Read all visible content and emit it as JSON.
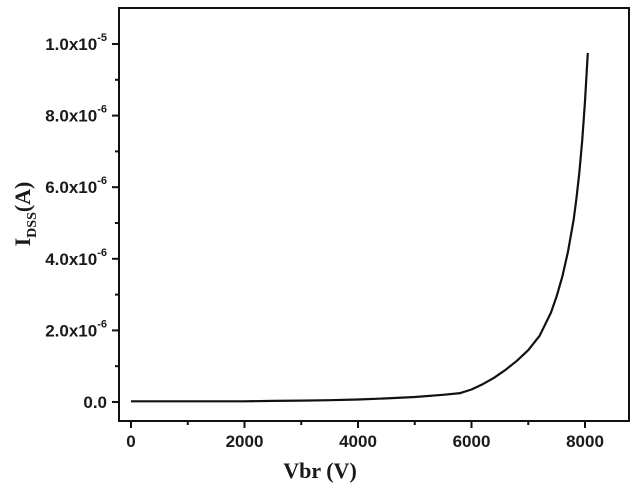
{
  "chart_data": {
    "type": "line",
    "title": "",
    "xlabel": "Vbr (V)",
    "ylabel": "I_DSS(A)",
    "ylabel_main": "I",
    "ylabel_sub": "DSS",
    "ylabel_unit": "(A)",
    "xlim": [
      -350,
      8700
    ],
    "ylim": [
      -5e-07,
      1.1e-05
    ],
    "grid": false,
    "legend": null,
    "x_ticks": [
      0,
      2000,
      4000,
      6000,
      8000
    ],
    "x_tick_labels": [
      "0",
      "2000",
      "4000",
      "6000",
      "8000"
    ],
    "x_minor_ticks": [
      1000,
      3000,
      5000,
      7000
    ],
    "y_ticks": [
      0,
      2e-06,
      4e-06,
      6e-06,
      8e-06,
      1e-05
    ],
    "y_tick_labels": [
      {
        "mantissa": "0.0",
        "exp": ""
      },
      {
        "mantissa": "2.0x10",
        "exp": "-6"
      },
      {
        "mantissa": "4.0x10",
        "exp": "-6"
      },
      {
        "mantissa": "6.0x10",
        "exp": "-6"
      },
      {
        "mantissa": "8.0x10",
        "exp": "-6"
      },
      {
        "mantissa": "1.0x10",
        "exp": "-5"
      }
    ],
    "y_minor_ticks": [
      1e-06,
      3e-06,
      5e-06,
      7e-06,
      9e-06
    ],
    "series": [
      {
        "name": "I_DSS",
        "color": "#111111",
        "x": [
          0,
          500,
          1000,
          1500,
          2000,
          2500,
          3000,
          3500,
          4000,
          4500,
          5000,
          5500,
          5800,
          6000,
          6200,
          6400,
          6600,
          6800,
          7000,
          7200,
          7400,
          7500,
          7600,
          7700,
          7800,
          7850,
          7900,
          7950,
          8000,
          8050
        ],
        "y": [
          2e-08,
          2e-08,
          2e-08,
          2e-08,
          2e-08,
          3e-08,
          4e-08,
          5e-08,
          7e-08,
          1e-07,
          1.4e-07,
          2e-07,
          2.5e-07,
          3.5e-07,
          5e-07,
          6.8e-07,
          9e-07,
          1.15e-06,
          1.45e-06,
          1.85e-06,
          2.5e-06,
          2.95e-06,
          3.5e-06,
          4.2e-06,
          5.1e-06,
          5.7e-06,
          6.4e-06,
          7.3e-06,
          8.4e-06,
          9.75e-06
        ]
      }
    ]
  }
}
